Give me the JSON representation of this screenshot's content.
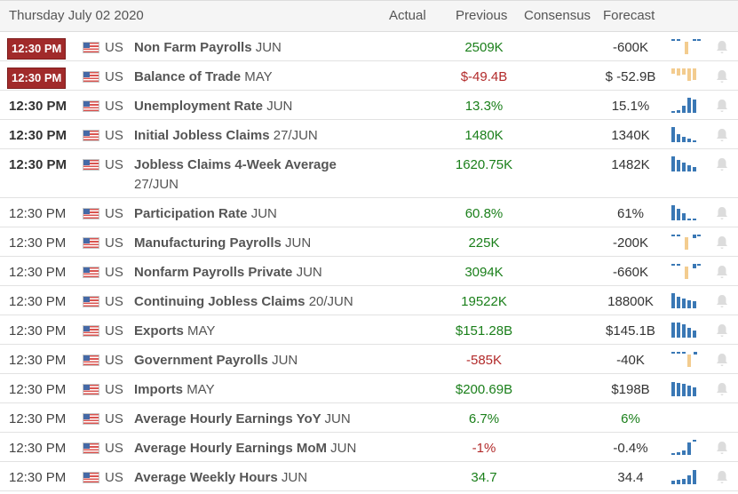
{
  "header": {
    "date": "Thursday July 02 2020",
    "actual": "Actual",
    "previous": "Previous",
    "consensus": "Consensus",
    "forecast": "Forecast"
  },
  "colors": {
    "up": "#1a7f1a",
    "down": "#b22a2a",
    "bar_blue": "#3a78b5",
    "bar_tan": "#f3cc8f",
    "badge": "#a12a2a"
  },
  "rows": [
    {
      "time": "12:30 PM",
      "country": "US",
      "event": "Non Farm Payrolls",
      "ref": "JUN",
      "previous": "2509K",
      "forecast": "-600K"
    },
    {
      "time": "12:30 PM",
      "country": "US",
      "event": "Balance of Trade",
      "ref": "MAY",
      "previous": "$-49.4B",
      "forecast": "$ -52.9B"
    },
    {
      "time": "12:30 PM",
      "country": "US",
      "event": "Unemployment Rate",
      "ref": "JUN",
      "previous": "13.3%",
      "forecast": "15.1%"
    },
    {
      "time": "12:30 PM",
      "country": "US",
      "event": "Initial Jobless Claims",
      "ref": "27/JUN",
      "previous": "1480K",
      "forecast": "1340K"
    },
    {
      "time": "12:30 PM",
      "country": "US",
      "event": "Jobless Claims 4-Week Average",
      "ref": "27/JUN",
      "previous": "1620.75K",
      "forecast": "1482K"
    },
    {
      "time": "12:30 PM",
      "country": "US",
      "event": "Participation Rate",
      "ref": "JUN",
      "previous": "60.8%",
      "forecast": "61%"
    },
    {
      "time": "12:30 PM",
      "country": "US",
      "event": "Manufacturing Payrolls",
      "ref": "JUN",
      "previous": "225K",
      "forecast": "-200K"
    },
    {
      "time": "12:30 PM",
      "country": "US",
      "event": "Nonfarm Payrolls Private",
      "ref": "JUN",
      "previous": "3094K",
      "forecast": "-660K"
    },
    {
      "time": "12:30 PM",
      "country": "US",
      "event": "Continuing Jobless Claims",
      "ref": "20/JUN",
      "previous": "19522K",
      "forecast": "18800K"
    },
    {
      "time": "12:30 PM",
      "country": "US",
      "event": "Exports",
      "ref": "MAY",
      "previous": "$151.28B",
      "forecast": "$145.1B"
    },
    {
      "time": "12:30 PM",
      "country": "US",
      "event": "Government Payrolls",
      "ref": "JUN",
      "previous": "-585K",
      "forecast": "-40K"
    },
    {
      "time": "12:30 PM",
      "country": "US",
      "event": "Imports",
      "ref": "MAY",
      "previous": "$200.69B",
      "forecast": "$198B"
    },
    {
      "time": "12:30 PM",
      "country": "US",
      "event": "Average Hourly Earnings YoY",
      "ref": "JUN",
      "previous": "6.7%",
      "forecast": "6%"
    },
    {
      "time": "12:30 PM",
      "country": "US",
      "event": "Average Hourly Earnings MoM",
      "ref": "JUN",
      "previous": "-1%",
      "forecast": "-0.4%"
    },
    {
      "time": "12:30 PM",
      "country": "US",
      "event": "Average Weekly Hours",
      "ref": "JUN",
      "previous": "34.7",
      "forecast": "34.4"
    }
  ]
}
